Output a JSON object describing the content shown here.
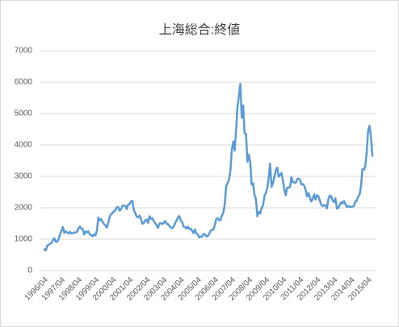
{
  "chart_data": {
    "type": "line",
    "title": "上海総合:終値",
    "categories": [
      "1996/04",
      null,
      null,
      null,
      null,
      null,
      null,
      null,
      null,
      null,
      null,
      null,
      "1997/04",
      null,
      null,
      null,
      null,
      null,
      null,
      null,
      null,
      null,
      null,
      null,
      "1998/04",
      null,
      null,
      null,
      null,
      null,
      null,
      null,
      null,
      null,
      null,
      null,
      "1999/04",
      null,
      null,
      null,
      null,
      null,
      null,
      null,
      null,
      null,
      null,
      null,
      "2000/04",
      null,
      null,
      null,
      null,
      null,
      null,
      null,
      null,
      null,
      null,
      null,
      "2001/04",
      null,
      null,
      null,
      null,
      null,
      null,
      null,
      null,
      null,
      null,
      null,
      "2002/04",
      null,
      null,
      null,
      null,
      null,
      null,
      null,
      null,
      null,
      null,
      null,
      "2003/04",
      null,
      null,
      null,
      null,
      null,
      null,
      null,
      null,
      null,
      null,
      null,
      "2004/04",
      null,
      null,
      null,
      null,
      null,
      null,
      null,
      null,
      null,
      null,
      null,
      "2005/04",
      null,
      null,
      null,
      null,
      null,
      null,
      null,
      null,
      null,
      null,
      null,
      "2006/04",
      null,
      null,
      null,
      null,
      null,
      null,
      null,
      null,
      null,
      null,
      null,
      "2007/04",
      null,
      null,
      null,
      null,
      null,
      null,
      null,
      null,
      null,
      null,
      null,
      "2008/04",
      null,
      null,
      null,
      null,
      null,
      null,
      null,
      null,
      null,
      null,
      null,
      "2009/04",
      null,
      null,
      null,
      null,
      null,
      null,
      null,
      null,
      null,
      null,
      null,
      "2010/04",
      null,
      null,
      null,
      null,
      null,
      null,
      null,
      null,
      null,
      null,
      null,
      "2011/04",
      null,
      null,
      null,
      null,
      null,
      null,
      null,
      null,
      null,
      null,
      null,
      "2012/04",
      null,
      null,
      null,
      null,
      null,
      null,
      null,
      null,
      null,
      null,
      null,
      "2013/04",
      null,
      null,
      null,
      null,
      null,
      null,
      null,
      null,
      null,
      null,
      null,
      "2014/04",
      null,
      null,
      null,
      null,
      null,
      null,
      null,
      null,
      null,
      null,
      null,
      "2015/04",
      null,
      null,
      null
    ],
    "values": [
      680,
      640,
      800,
      820,
      860,
      880,
      970,
      1030,
      920,
      920,
      1000,
      1150,
      1270,
      1390,
      1200,
      1250,
      1220,
      1180,
      1240,
      1180,
      1190,
      1220,
      1210,
      1240,
      1340,
      1410,
      1340,
      1320,
      1150,
      1250,
      1220,
      1250,
      1150,
      1130,
      1090,
      1160,
      1120,
      1280,
      1690,
      1600,
      1640,
      1550,
      1480,
      1440,
      1370,
      1530,
      1710,
      1800,
      1830,
      1890,
      1920,
      2020,
      2020,
      1910,
      1960,
      2070,
      2070,
      2060,
      1960,
      2110,
      2120,
      2210,
      2220,
      1920,
      1830,
      1720,
      1690,
      1750,
      1650,
      1490,
      1520,
      1600,
      1620,
      1520,
      1730,
      1650,
      1670,
      1580,
      1510,
      1440,
      1360,
      1500,
      1510,
      1480,
      1520,
      1580,
      1490,
      1480,
      1420,
      1370,
      1350,
      1400,
      1500,
      1590,
      1680,
      1740,
      1600,
      1560,
      1400,
      1390,
      1340,
      1400,
      1320,
      1340,
      1270,
      1190,
      1310,
      1180,
      1160,
      1060,
      1080,
      1080,
      1160,
      1160,
      1090,
      1100,
      1160,
      1260,
      1300,
      1300,
      1440,
      1640,
      1670,
      1610,
      1600,
      1750,
      1840,
      2100,
      2680,
      2790,
      2880,
      3180,
      3840,
      4110,
      3820,
      4470,
      5220,
      5550,
      5950,
      4870,
      5260,
      4380,
      4350,
      3470,
      3690,
      3430,
      2740,
      2780,
      2400,
      2290,
      1730,
      1870,
      1820,
      1990,
      2080,
      2370,
      2480,
      2630,
      2960,
      3410,
      2670,
      2780,
      2990,
      3200,
      3280,
      2990,
      3050,
      3110,
      2870,
      2590,
      2400,
      2640,
      2640,
      2660,
      2980,
      2820,
      2810,
      2790,
      2910,
      2930,
      2910,
      2740,
      2760,
      2700,
      2570,
      2360,
      2470,
      2330,
      2200,
      2290,
      2430,
      2260,
      2400,
      2370,
      2230,
      2100,
      2050,
      2090,
      2070,
      1980,
      2270,
      2390,
      2360,
      2240,
      2180,
      2300,
      1980,
      1990,
      2100,
      2170,
      2140,
      2220,
      2120,
      2030,
      2060,
      2030,
      2030,
      2040,
      2050,
      2200,
      2220,
      2360,
      2420,
      2680,
      3230,
      3210,
      3310,
      3750,
      4440,
      4610,
      4280,
      3660
    ],
    "color": "#5b9bd5",
    "ylim": [
      0,
      7000
    ],
    "yticks": [
      0,
      1000,
      2000,
      3000,
      4000,
      5000,
      6000,
      7000
    ],
    "grid": true
  }
}
